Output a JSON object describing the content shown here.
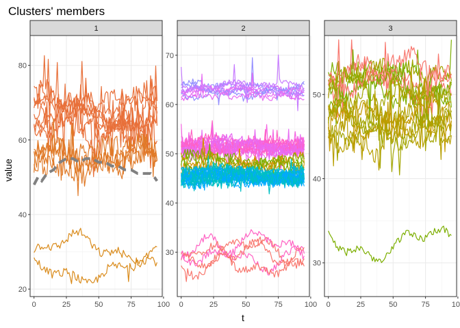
{
  "chart_data": {
    "type": "line",
    "title": "Clusters' members",
    "xlabel": "t",
    "ylabel": "value",
    "x_ticks": [
      "0",
      "25",
      "50",
      "75",
      "100"
    ],
    "xlim": [
      -3,
      99
    ],
    "grid": true,
    "facets": [
      {
        "label": "1",
        "ylim": [
          18,
          88
        ],
        "y_ticks": [
          20,
          40,
          60,
          80
        ],
        "colors": [
          "#E8703A",
          "#E07A28",
          "#F0703A",
          "#D98A1A"
        ],
        "centroid": {
          "style": "dashed",
          "color": "#808080",
          "points": [
            [
              0,
              48
            ],
            [
              3,
              50
            ],
            [
              6,
              49
            ],
            [
              10,
              51
            ],
            [
              15,
              52
            ],
            [
              20,
              54
            ],
            [
              25,
              55
            ],
            [
              30,
              55
            ],
            [
              35,
              54
            ],
            [
              40,
              55
            ],
            [
              45,
              55
            ],
            [
              50,
              54
            ],
            [
              55,
              54
            ],
            [
              60,
              53
            ],
            [
              65,
              53
            ],
            [
              70,
              52
            ],
            [
              75,
              52
            ],
            [
              80,
              51
            ],
            [
              85,
              51
            ],
            [
              90,
              51
            ],
            [
              93,
              50
            ],
            [
              95,
              49
            ]
          ]
        },
        "groups": [
          {
            "count": 8,
            "n": 96,
            "base": 66,
            "amp": 7,
            "noise": 1.5,
            "spikes": 0.15,
            "spikeAmp": 10,
            "colorIdx": 0
          },
          {
            "count": 4,
            "n": 96,
            "base": 55,
            "amp": 4,
            "noise": 3,
            "spikes": 0.05,
            "spikeAmp": 8,
            "colorIdx": 1
          },
          {
            "count": 1,
            "n": 96,
            "base": 29,
            "amp": 5,
            "noise": 1.2,
            "spikes": 0.02,
            "spikeAmp": 6,
            "colorIdx": 3
          },
          {
            "count": 1,
            "n": 96,
            "base": 25,
            "amp": 4,
            "noise": 1.2,
            "spikes": 0.02,
            "spikeAmp": 5,
            "colorIdx": 3
          }
        ]
      },
      {
        "label": "2",
        "ylim": [
          21,
          74
        ],
        "y_ticks": [
          30,
          40,
          50,
          60,
          70
        ],
        "colors": [
          "#FF61C3",
          "#F564E3",
          "#00A9FF",
          "#00BFC4",
          "#C77CFF",
          "#9590FF",
          "#D39200",
          "#7CAE00",
          "#F8766D",
          "#E76BF3"
        ],
        "groups": [
          {
            "count": 10,
            "n": 96,
            "base": 63,
            "amp": 1.5,
            "noise": 0.6,
            "spikes": 0.02,
            "spikeAmp": 6,
            "colorIdx": [
              4,
              5,
              9
            ]
          },
          {
            "count": 18,
            "n": 96,
            "base": 51.5,
            "amp": 1.5,
            "noise": 1.0,
            "spikes": 0.03,
            "spikeAmp": 4,
            "colorIdx": [
              0,
              1,
              9
            ]
          },
          {
            "count": 6,
            "n": 96,
            "base": 48,
            "amp": 1.5,
            "noise": 1.2,
            "spikes": 0.02,
            "spikeAmp": 4,
            "colorIdx": [
              6,
              7
            ]
          },
          {
            "count": 20,
            "n": 96,
            "base": 45.5,
            "amp": 1.2,
            "noise": 1.3,
            "spikes": 0.02,
            "spikeAmp": 3,
            "colorIdx": [
              2,
              3
            ]
          },
          {
            "count": 5,
            "n": 96,
            "base": 30,
            "amp": 4,
            "noise": 0.8,
            "spikes": 0.01,
            "spikeAmp": 3,
            "colorIdx": [
              8,
              0
            ]
          }
        ]
      },
      {
        "label": "3",
        "ylim": [
          26,
          57
        ],
        "y_ticks": [
          30,
          40,
          50
        ],
        "colors": [
          "#7CAE00",
          "#A3A500",
          "#B79F00",
          "#E58700",
          "#F8766D",
          "#C49A00"
        ],
        "groups": [
          {
            "count": 9,
            "n": 96,
            "base": 51.5,
            "amp": 2.5,
            "noise": 1.0,
            "spikes": 0.06,
            "spikeAmp": 5,
            "colorIdx": [
              0,
              1,
              4
            ]
          },
          {
            "count": 8,
            "n": 96,
            "base": 46,
            "amp": 2.5,
            "noise": 1.0,
            "spikes": 0.06,
            "spikeAmp": 5,
            "colorIdx": [
              1,
              2,
              5
            ]
          },
          {
            "count": 1,
            "n": 96,
            "base": 32,
            "amp": 2.5,
            "noise": 0.5,
            "spikes": 0.0,
            "spikeAmp": 0,
            "colorIdx": 0
          }
        ]
      }
    ]
  }
}
